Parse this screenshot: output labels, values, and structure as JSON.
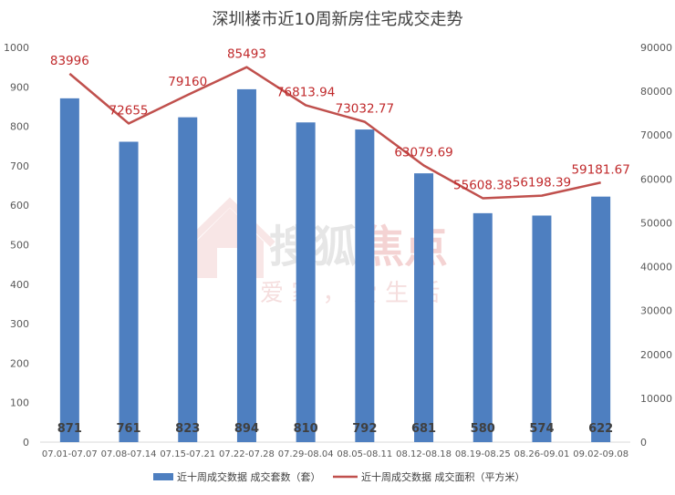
{
  "chart_data": {
    "type": "bar",
    "title": "深圳楼市近10周新房住宅成交走势",
    "categories": [
      "07.01-07.07",
      "07.08-07.14",
      "07.15-07.21",
      "07.22-07.28",
      "07.29-08.04",
      "08.05-08.11",
      "08.12-08.18",
      "08.19-08.25",
      "08.26-09.01",
      "09.02-09.08"
    ],
    "series": [
      {
        "name": "近十周成交数据 成交套数（套）",
        "type": "bar",
        "axis": "left",
        "color": "#4e7fc0",
        "values": [
          871,
          761,
          823,
          894,
          810,
          792,
          681,
          580,
          574,
          622
        ],
        "labels": [
          "871",
          "761",
          "823",
          "894",
          "810",
          "792",
          "681",
          "580",
          "574",
          "622"
        ]
      },
      {
        "name": "近十周成交数据 成交面积（平方米）",
        "type": "line",
        "axis": "right",
        "color": "#c0504d",
        "values": [
          83996,
          72655,
          79160,
          85493,
          76813.94,
          73032.77,
          63079.69,
          55608.38,
          56198.39,
          59181.67
        ],
        "labels": [
          "83996",
          "72655",
          "79160",
          "85493",
          "76813.94",
          "73032.77",
          "63079.69",
          "55608.38",
          "56198.39",
          "59181.67"
        ]
      }
    ],
    "y_left": {
      "ylim": [
        0,
        1000
      ],
      "ticks": [
        "0",
        "100",
        "200",
        "300",
        "400",
        "500",
        "600",
        "700",
        "800",
        "900",
        "1000"
      ]
    },
    "y_right": {
      "ylim": [
        0,
        90000
      ],
      "ticks": [
        "0",
        "10000",
        "20000",
        "30000",
        "40000",
        "50000",
        "60000",
        "70000",
        "80000",
        "90000"
      ]
    },
    "grid": false,
    "legend": "bottom"
  },
  "watermark": {
    "brand": "搜狐",
    "brand_accent": "焦点",
    "slogan": "爱 家 ， 爱 生 活"
  }
}
